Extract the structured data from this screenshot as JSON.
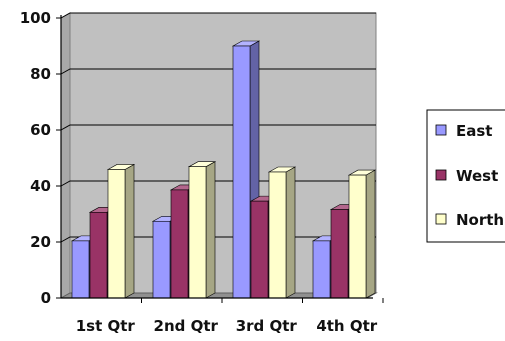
{
  "chart_data": {
    "type": "bar",
    "categories": [
      "1st Qtr",
      "2nd Qtr",
      "3rd Qtr",
      "4th Qtr"
    ],
    "series": [
      {
        "name": "East",
        "values": [
          20.4,
          27.4,
          90,
          20.4
        ],
        "color": "#9999ff"
      },
      {
        "name": "West",
        "values": [
          30.6,
          38.6,
          34.6,
          31.6
        ],
        "color": "#993366"
      },
      {
        "name": "North",
        "values": [
          45.9,
          46.9,
          45,
          43.9
        ],
        "color": "#ffffcc"
      }
    ],
    "ylim": [
      0,
      100
    ],
    "yticks": [
      "0",
      "20",
      "40",
      "60",
      "80",
      "100"
    ],
    "ytick_values": [
      0,
      20,
      40,
      60,
      80,
      100
    ],
    "grid": true,
    "legend_position": "right",
    "plot_background": "#c0c0c0",
    "gridline_color": "#000000",
    "style": "3d-column"
  }
}
